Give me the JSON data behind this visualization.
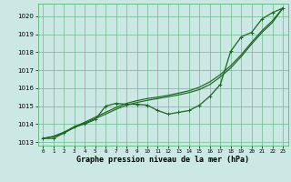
{
  "xlabel": "Graphe pression niveau de la mer (hPa)",
  "background_color": "#cce8e4",
  "grid_color": "#6bbb8a",
  "line_color": "#1a6620",
  "xlim_min": -0.5,
  "xlim_max": 23.5,
  "ylim_min": 1012.8,
  "ylim_max": 1020.7,
  "yticks": [
    1013,
    1014,
    1015,
    1016,
    1017,
    1018,
    1019,
    1020
  ],
  "xticks": [
    0,
    1,
    2,
    3,
    4,
    5,
    6,
    7,
    8,
    9,
    10,
    11,
    12,
    13,
    14,
    15,
    16,
    17,
    18,
    19,
    20,
    21,
    22,
    23
  ],
  "hours": [
    0,
    1,
    2,
    3,
    4,
    5,
    6,
    7,
    8,
    9,
    10,
    11,
    12,
    13,
    14,
    15,
    16,
    17,
    18,
    19,
    20,
    21,
    22,
    23
  ],
  "line_main": [
    1013.2,
    1013.2,
    1013.5,
    1013.85,
    1014.0,
    1014.25,
    1015.0,
    1015.15,
    1015.1,
    1015.1,
    1015.05,
    1014.75,
    1014.55,
    1014.65,
    1014.75,
    1015.05,
    1015.55,
    1016.2,
    1018.05,
    1018.85,
    1019.1,
    1019.85,
    1020.2,
    1020.45
  ],
  "line_smooth1": [
    1013.2,
    1013.32,
    1013.55,
    1013.85,
    1014.1,
    1014.38,
    1014.65,
    1014.92,
    1015.15,
    1015.3,
    1015.42,
    1015.5,
    1015.6,
    1015.72,
    1015.85,
    1016.05,
    1016.35,
    1016.75,
    1017.25,
    1017.85,
    1018.55,
    1019.2,
    1019.75,
    1020.45
  ],
  "line_smooth2": [
    1013.2,
    1013.3,
    1013.5,
    1013.8,
    1014.05,
    1014.3,
    1014.55,
    1014.82,
    1015.05,
    1015.2,
    1015.32,
    1015.42,
    1015.52,
    1015.62,
    1015.75,
    1015.92,
    1016.2,
    1016.62,
    1017.12,
    1017.75,
    1018.45,
    1019.1,
    1019.65,
    1020.45
  ]
}
